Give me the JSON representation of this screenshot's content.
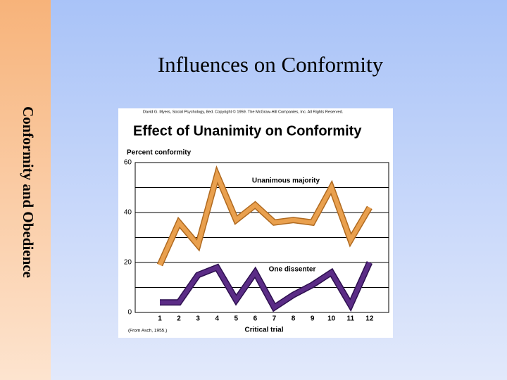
{
  "slide": {
    "sidebar": "Conformity and Obedience",
    "title": "Influences on Conformity"
  },
  "chart_data": {
    "type": "line",
    "copyright": "David G. Myers, Social Psychology, 8ed. Copyright © 1959. The McGraw-Hill Companies, Inc. All Rights Reserved.",
    "title": "Effect of Unanimity on Conformity",
    "y_label": "Percent conformity",
    "x_label": "Critical trial",
    "source": "(From Asch, 1955.)",
    "categories": [
      1,
      2,
      3,
      4,
      5,
      6,
      7,
      8,
      9,
      10,
      11,
      12
    ],
    "series": [
      {
        "name": "Unanimous majority",
        "color": "#e9a04e",
        "values": [
          19,
          36,
          27,
          55,
          37,
          43,
          36,
          37,
          36,
          50,
          29,
          42
        ]
      },
      {
        "name": "One dissenter",
        "color": "#5b2c86",
        "values": [
          4,
          4,
          15,
          18,
          5,
          16,
          2,
          7,
          11,
          16,
          3,
          20
        ]
      }
    ],
    "ylim": [
      0,
      60
    ],
    "yticks": [
      0,
      20,
      40,
      60
    ],
    "grid": true
  }
}
